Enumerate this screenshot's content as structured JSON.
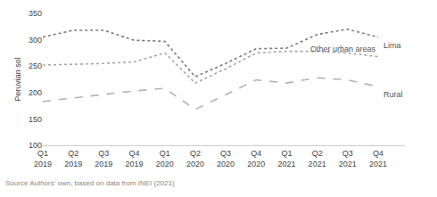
{
  "chart_data": {
    "type": "line",
    "y_label": "Peruvian sol",
    "categories": [
      "Q1 2019",
      "Q2 2019",
      "Q3 2019",
      "Q4 2019",
      "Q1 2020",
      "Q2 2020",
      "Q3 2020",
      "Q4 2020",
      "Q1 2021",
      "Q2 2021",
      "Q3 2021",
      "Q4 2021"
    ],
    "series": [
      {
        "name": "Lima",
        "color": "#7a7a7a",
        "line_style": "dot",
        "values": [
          305,
          318,
          318,
          299,
          297,
          230,
          255,
          283,
          284,
          310,
          320,
          305
        ]
      },
      {
        "name": "Other urban areas",
        "color": "#a6a6a6",
        "line_style": "dot",
        "values": [
          252,
          253,
          255,
          258,
          275,
          218,
          245,
          275,
          278,
          278,
          275,
          268
        ]
      },
      {
        "name": "Rural",
        "color": "#b3b3b3",
        "line_style": "dash",
        "values": [
          183,
          190,
          196,
          203,
          208,
          168,
          196,
          224,
          218,
          228,
          224,
          211
        ]
      }
    ],
    "ylim": [
      100,
      350
    ],
    "yticks": [
      100,
      150,
      200,
      250,
      300,
      350
    ],
    "grid": false,
    "annotations": [
      "Source Authors' own, based on data from INEI (2021)"
    ]
  }
}
